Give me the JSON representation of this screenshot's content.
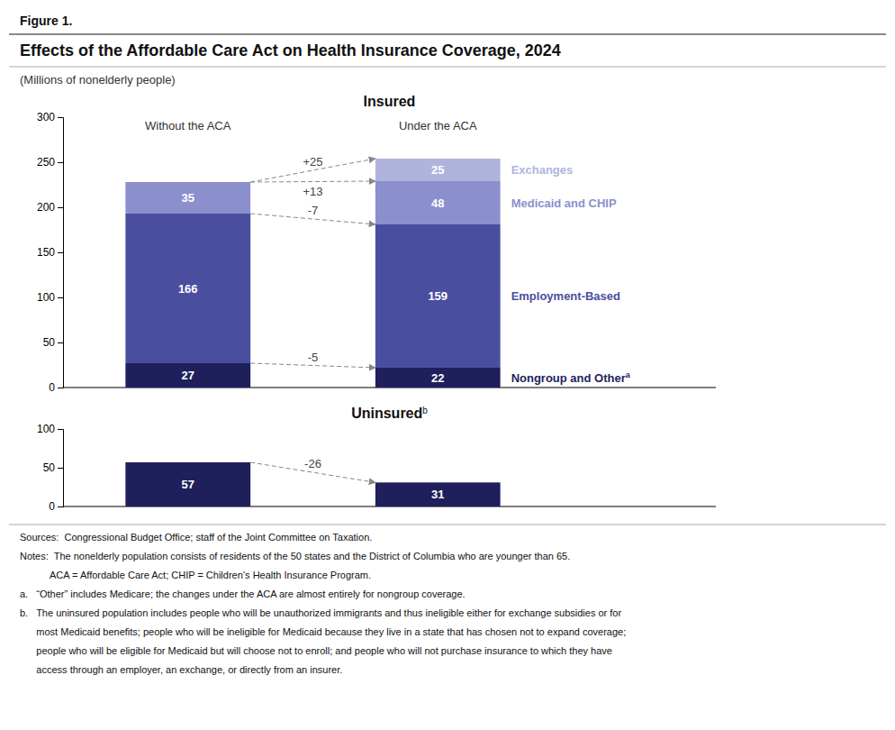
{
  "figure_label": "Figure 1.",
  "title": "Effects of the Affordable Care Act on Health Insurance Coverage, 2024",
  "subtitle": "(Millions of nonelderly people)",
  "notes": [
    "Sources:  Congressional Budget Office; staff of the Joint Committee on Taxation.",
    "Notes:  The nonelderly population consists of residents of the 50 states and the District of Columbia who are younger than 65.",
    "           ACA = Affordable Care Act; CHIP = Children’s Health Insurance Program.",
    "a.   “Other” includes Medicare; the changes under the ACA are almost entirely for nongroup coverage.",
    "b.   The uninsured population includes people who will be unauthorized immigrants and thus ineligible either for exchange subsidies or for",
    "      most Medicaid benefits; people who will be ineligible for Medicaid because they live in a state that has chosen not to expand coverage;",
    "      people who will be eligible for Medicaid but will choose not to enroll; and people who will not purchase insurance to which they have",
    "      access through an employer, an exchange, or directly from an insurer."
  ],
  "chart_data": [
    {
      "type": "bar",
      "title": "Insured",
      "stacked": true,
      "data_labels": true,
      "categories": [
        "Without the ACA",
        "Under the ACA"
      ],
      "series": [
        {
          "name": "Nongroup and Other",
          "note": "a",
          "color": "#1f1f5c",
          "values": [
            27,
            22
          ]
        },
        {
          "name": "Employment-Based",
          "color": "#4a4e9e",
          "values": [
            166,
            159
          ]
        },
        {
          "name": "Medicaid and CHIP",
          "color": "#8b8fcc",
          "values": [
            35,
            48
          ]
        },
        {
          "name": "Exchanges",
          "color": "#b0b4dd",
          "values": [
            0,
            25
          ]
        }
      ],
      "annotations": [
        "-5",
        "-7",
        "+13",
        "+25"
      ],
      "ylim": [
        0,
        300
      ],
      "yticks": [
        0,
        50,
        100,
        150,
        200,
        250,
        300
      ]
    },
    {
      "type": "bar",
      "title": "Uninsured",
      "title_note": "b",
      "data_labels": true,
      "categories": [
        null,
        null
      ],
      "values": [
        57,
        31
      ],
      "color": "#1f1f5c",
      "annotations": [
        "-26"
      ],
      "ylim": [
        0,
        100
      ],
      "yticks": [
        0,
        50,
        100
      ]
    }
  ]
}
